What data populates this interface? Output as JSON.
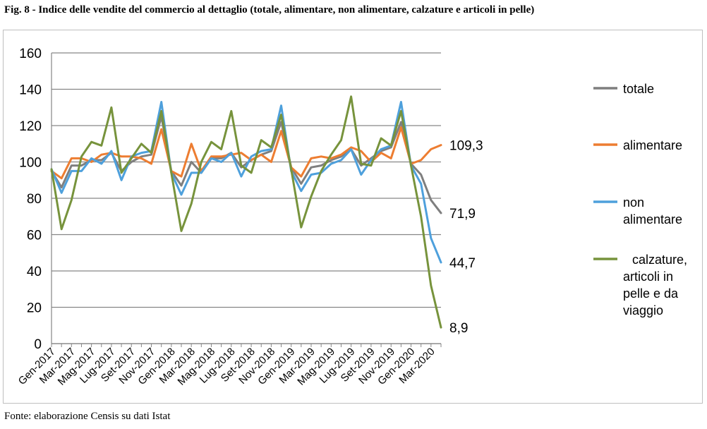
{
  "figure": {
    "title": "Fig. 8 - Indice delle vendite del commercio al dettaglio (totale, alimentare, non alimentare, calzature e articoli in pelle)",
    "source": "Fonte: elaborazione Censis su dati Istat"
  },
  "chart_data": {
    "type": "line",
    "title": "Fig. 8 - Indice delle vendite del commercio al dettaglio (totale, alimentare, non alimentare, calzature e articoli in pelle)",
    "xlabel": "",
    "ylabel": "",
    "ylim": [
      0,
      160
    ],
    "yticks": [
      0,
      20,
      40,
      60,
      80,
      100,
      120,
      140,
      160
    ],
    "grid": true,
    "legend_position": "right",
    "x": [
      "Gen-2017",
      "Feb-2017",
      "Mar-2017",
      "Apr-2017",
      "Mag-2017",
      "Giu-2017",
      "Lug-2017",
      "Ago-2017",
      "Set-2017",
      "Ott-2017",
      "Nov-2017",
      "Dic-2017",
      "Gen-2018",
      "Feb-2018",
      "Mar-2018",
      "Apr-2018",
      "Mag-2018",
      "Giu-2018",
      "Lug-2018",
      "Ago-2018",
      "Set-2018",
      "Ott-2018",
      "Nov-2018",
      "Dic-2018",
      "Gen-2019",
      "Feb-2019",
      "Mar-2019",
      "Apr-2019",
      "Mag-2019",
      "Giu-2019",
      "Lug-2019",
      "Ago-2019",
      "Set-2019",
      "Ott-2019",
      "Nov-2019",
      "Dic-2019",
      "Gen-2020",
      "Feb-2020",
      "Mar-2020",
      "Apr-2020"
    ],
    "tick_labels": [
      "Gen-2017",
      "Mar-2017",
      "Mag-2017",
      "Lug-2017",
      "Set-2017",
      "Nov-2017",
      "Gen-2018",
      "Mar-2018",
      "Mag-2018",
      "Lug-2018",
      "Set-2018",
      "Nov-2018",
      "Gen-2019",
      "Mar-2019",
      "Mag-2019",
      "Lug-2019",
      "Set-2019",
      "Nov-2019",
      "Gen-2020",
      "Mar-2020"
    ],
    "series": [
      {
        "name": "totale",
        "color": "#7f7f7f",
        "values": [
          95,
          86,
          98,
          98,
          101,
          101,
          105,
          95,
          100,
          103,
          104,
          125,
          95,
          87,
          100,
          94,
          102,
          102,
          105,
          97,
          101,
          104,
          106,
          122,
          97,
          88,
          97,
          98,
          101,
          103,
          107,
          98,
          102,
          106,
          108,
          122,
          99,
          93,
          79,
          71.9
        ]
      },
      {
        "name": "alimentare",
        "color": "#ed7d31",
        "values": [
          95,
          91,
          102,
          102,
          100,
          104,
          105,
          103,
          103,
          102,
          99,
          118,
          95,
          92,
          110,
          95,
          103,
          103,
          104,
          105,
          101,
          104,
          100,
          117,
          97,
          92,
          102,
          103,
          102,
          104,
          108,
          106,
          100,
          105,
          102,
          119,
          99,
          101,
          107,
          109.3
        ]
      },
      {
        "name": "non alimentare",
        "color": "#4ea0dc",
        "values": [
          96,
          83,
          95,
          95,
          102,
          99,
          106,
          90,
          103,
          105,
          106,
          133,
          94,
          82,
          94,
          94,
          102,
          100,
          105,
          92,
          103,
          106,
          107,
          131,
          95,
          84,
          93,
          94,
          99,
          101,
          107,
          93,
          101,
          107,
          109,
          133,
          98,
          88,
          58,
          44.7
        ]
      },
      {
        "name": "calzature, articoli in pelle e da viaggio",
        "color": "#77933c",
        "values": [
          96,
          63,
          79,
          103,
          111,
          109,
          130,
          94,
          102,
          110,
          105,
          128,
          94,
          62,
          77,
          100,
          111,
          107,
          128,
          98,
          94,
          112,
          108,
          126,
          96,
          64,
          81,
          95,
          104,
          112,
          136,
          99,
          98,
          113,
          109,
          128,
          98,
          70,
          32,
          8.9
        ]
      }
    ],
    "end_labels": [
      "109,3",
      "71,9",
      "44,7",
      "8,9"
    ]
  }
}
